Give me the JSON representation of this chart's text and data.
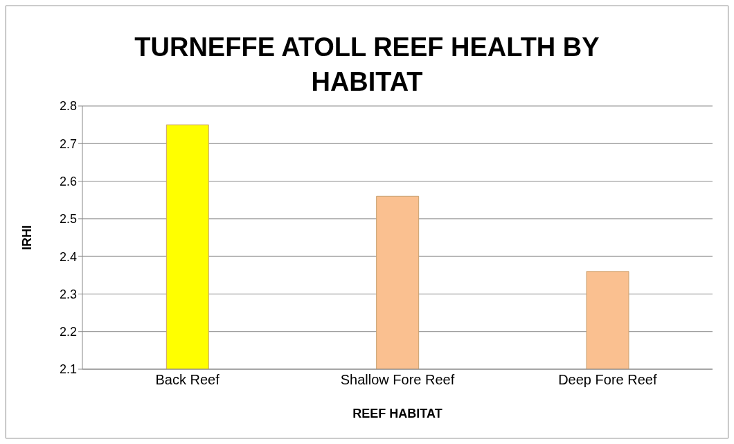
{
  "chart_data": {
    "type": "bar",
    "title": "TURNEFFE ATOLL REEF HEALTH BY HABITAT",
    "xlabel": "REEF HABITAT",
    "ylabel": "IRHI",
    "categories": [
      "Back Reef",
      "Shallow Fore Reef",
      "Deep Fore Reef"
    ],
    "values": [
      2.75,
      2.56,
      2.36
    ],
    "colors": [
      "#ffff00",
      "#fac090",
      "#fac090"
    ],
    "ylim": [
      2.1,
      2.8
    ],
    "yticks": [
      2.1,
      2.2,
      2.3,
      2.4,
      2.5,
      2.6,
      2.7,
      2.8
    ],
    "grid": "y",
    "legend": false
  }
}
